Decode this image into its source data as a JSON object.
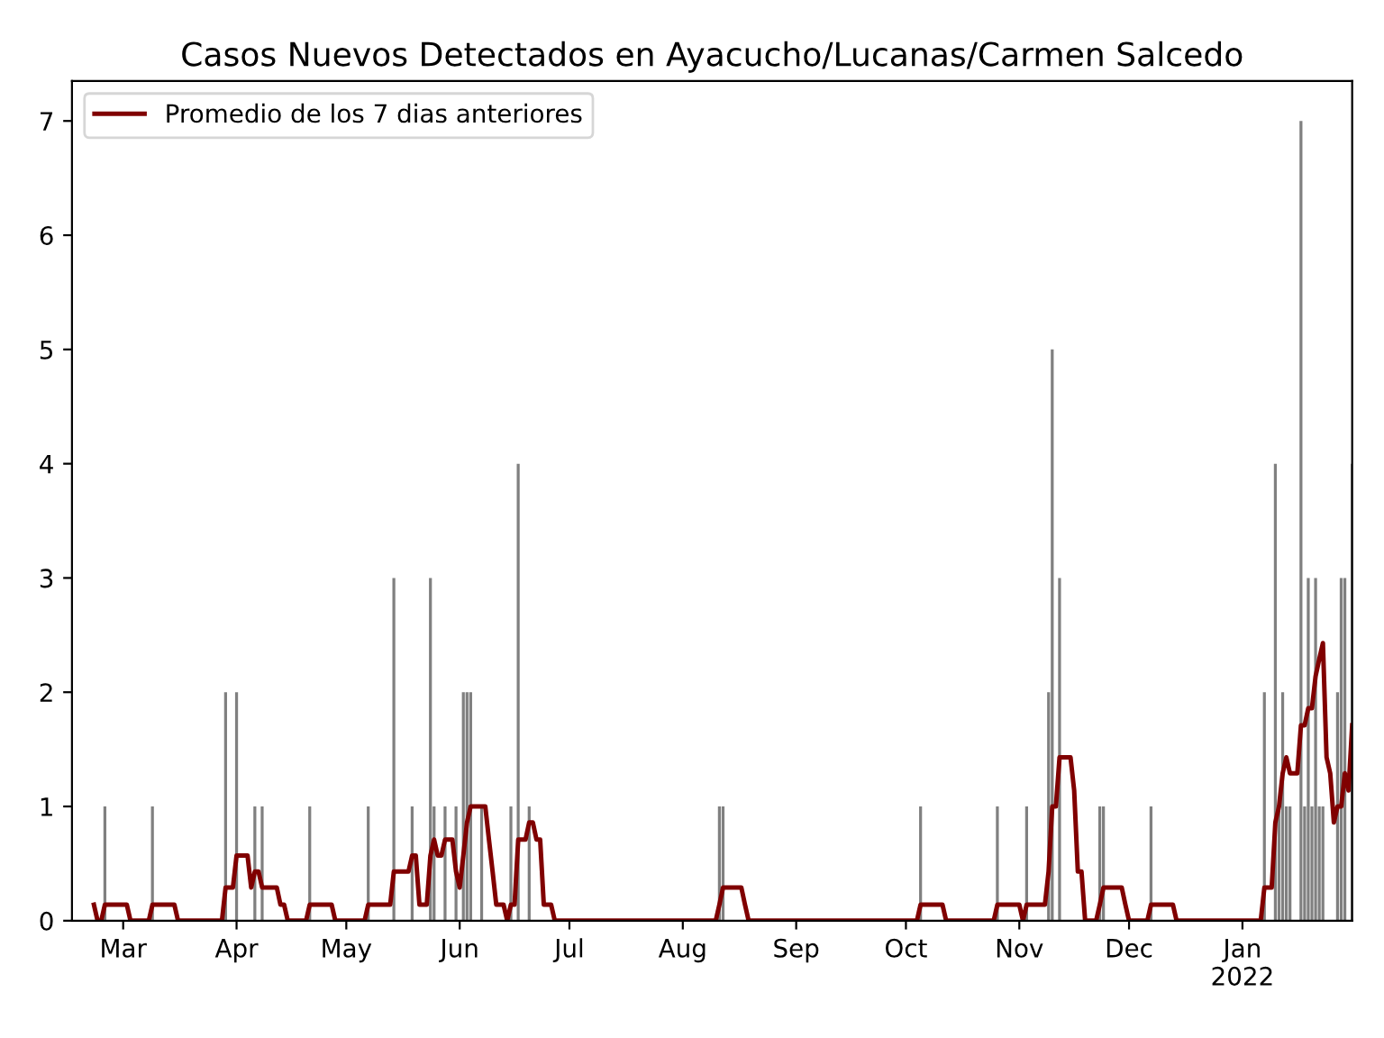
{
  "chart_data": {
    "type": "bar",
    "title": "Casos Nuevos Detectados en Ayacucho/Lucanas/Carmen Salcedo",
    "series": [
      {
        "color": "#808080",
        "x": [
          "2021-02-24",
          "2021-03-09",
          "2021-03-29",
          "2021-04-01",
          "2021-04-06",
          "2021-04-08",
          "2021-04-21",
          "2021-05-07",
          "2021-05-14",
          "2021-05-19",
          "2021-05-24",
          "2021-05-25",
          "2021-05-28",
          "2021-05-31",
          "2021-06-02",
          "2021-06-03",
          "2021-06-04",
          "2021-06-07",
          "2021-06-15",
          "2021-06-17",
          "2021-06-20",
          "2021-08-11",
          "2021-08-12",
          "2021-10-05",
          "2021-10-26",
          "2021-11-03",
          "2021-11-09",
          "2021-11-10",
          "2021-11-12",
          "2021-11-23",
          "2021-11-24",
          "2021-12-07",
          "2022-01-07",
          "2022-01-10",
          "2022-01-11",
          "2022-01-12",
          "2022-01-13",
          "2022-01-14",
          "2022-01-17",
          "2022-01-18",
          "2022-01-19",
          "2022-01-20",
          "2022-01-21",
          "2022-01-22",
          "2022-01-23",
          "2022-01-27",
          "2022-01-28",
          "2022-01-29",
          "2022-01-31"
        ],
        "values": [
          1,
          1,
          2,
          2,
          1,
          1,
          1,
          1,
          3,
          1,
          3,
          1,
          1,
          1,
          2,
          2,
          2,
          1,
          1,
          4,
          1,
          1,
          1,
          1,
          1,
          1,
          2,
          5,
          3,
          1,
          1,
          1,
          2,
          4,
          1,
          2,
          1,
          1,
          7,
          1,
          3,
          1,
          3,
          1,
          1,
          2,
          3,
          3,
          4
        ]
      },
      {
        "type": "line",
        "name": "Promedio de los 7 dias anteriores",
        "color": "#800000",
        "x": [
          "2021-02-21",
          "2021-02-22",
          "2021-02-23",
          "2021-02-24",
          "2021-03-02",
          "2021-03-03",
          "2021-03-08",
          "2021-03-09",
          "2021-03-15",
          "2021-03-16",
          "2021-03-28",
          "2021-03-29",
          "2021-03-31",
          "2021-04-01",
          "2021-04-04",
          "2021-04-05",
          "2021-04-06",
          "2021-04-07",
          "2021-04-08",
          "2021-04-12",
          "2021-04-13",
          "2021-04-14",
          "2021-04-15",
          "2021-04-20",
          "2021-04-21",
          "2021-04-27",
          "2021-04-28",
          "2021-05-06",
          "2021-05-07",
          "2021-05-13",
          "2021-05-14",
          "2021-05-18",
          "2021-05-19",
          "2021-05-20",
          "2021-05-21",
          "2021-05-23",
          "2021-05-24",
          "2021-05-25",
          "2021-05-26",
          "2021-05-27",
          "2021-05-28",
          "2021-05-30",
          "2021-05-31",
          "2021-06-01",
          "2021-06-02",
          "2021-06-03",
          "2021-06-04",
          "2021-06-08",
          "2021-06-09",
          "2021-06-10",
          "2021-06-11",
          "2021-06-13",
          "2021-06-14",
          "2021-06-15",
          "2021-06-16",
          "2021-06-17",
          "2021-06-19",
          "2021-06-20",
          "2021-06-21",
          "2021-06-22",
          "2021-06-23",
          "2021-06-24",
          "2021-06-26",
          "2021-06-27",
          "2021-08-10",
          "2021-08-11",
          "2021-08-12",
          "2021-08-17",
          "2021-08-18",
          "2021-08-19",
          "2021-10-04",
          "2021-10-05",
          "2021-10-11",
          "2021-10-12",
          "2021-10-25",
          "2021-10-26",
          "2021-11-01",
          "2021-11-02",
          "2021-11-03",
          "2021-11-08",
          "2021-11-09",
          "2021-11-10",
          "2021-11-11",
          "2021-11-12",
          "2021-11-15",
          "2021-11-16",
          "2021-11-17",
          "2021-11-18",
          "2021-11-19",
          "2021-11-22",
          "2021-11-23",
          "2021-11-24",
          "2021-11-29",
          "2021-11-30",
          "2021-12-01",
          "2021-12-06",
          "2021-12-07",
          "2021-12-13",
          "2021-12-14",
          "2022-01-06",
          "2022-01-07",
          "2022-01-09",
          "2022-01-10",
          "2022-01-11",
          "2022-01-12",
          "2022-01-13",
          "2022-01-14",
          "2022-01-16",
          "2022-01-17",
          "2022-01-18",
          "2022-01-19",
          "2022-01-20",
          "2022-01-21",
          "2022-01-22",
          "2022-01-23",
          "2022-01-24",
          "2022-01-25",
          "2022-01-26",
          "2022-01-27",
          "2022-01-28",
          "2022-01-29",
          "2022-01-30",
          "2022-01-31"
        ],
        "values": [
          0.14,
          0,
          0,
          0.14,
          0.14,
          0,
          0,
          0.14,
          0.14,
          0,
          0,
          0.29,
          0.29,
          0.57,
          0.57,
          0.29,
          0.43,
          0.43,
          0.29,
          0.29,
          0.14,
          0.14,
          0,
          0,
          0.14,
          0.14,
          0,
          0,
          0.14,
          0.14,
          0.43,
          0.43,
          0.57,
          0.57,
          0.14,
          0.14,
          0.57,
          0.71,
          0.57,
          0.57,
          0.71,
          0.71,
          0.43,
          0.29,
          0.57,
          0.86,
          1.0,
          1.0,
          0.71,
          0.43,
          0.14,
          0.14,
          0,
          0.14,
          0.14,
          0.71,
          0.71,
          0.86,
          0.86,
          0.71,
          0.71,
          0.14,
          0.14,
          0,
          0,
          0.14,
          0.29,
          0.29,
          0.14,
          0,
          0,
          0.14,
          0.14,
          0,
          0,
          0.14,
          0.14,
          0,
          0.14,
          0.14,
          0.43,
          1.0,
          1.0,
          1.43,
          1.43,
          1.14,
          0.43,
          0.43,
          0,
          0,
          0.14,
          0.29,
          0.29,
          0.14,
          0,
          0,
          0.14,
          0.14,
          0,
          0,
          0.29,
          0.29,
          0.86,
          1.0,
          1.29,
          1.43,
          1.29,
          1.29,
          1.71,
          1.71,
          1.86,
          1.86,
          2.14,
          2.29,
          2.43,
          1.43,
          1.29,
          0.86,
          1.0,
          1.0,
          1.29,
          1.14,
          1.71
        ]
      }
    ],
    "xlim": [
      "2021-02-15",
      "2022-01-31"
    ],
    "xticks": [
      {
        "value": "2021-03-01",
        "label": "Mar"
      },
      {
        "value": "2021-04-01",
        "label": "Apr"
      },
      {
        "value": "2021-05-01",
        "label": "May"
      },
      {
        "value": "2021-06-01",
        "label": "Jun"
      },
      {
        "value": "2021-07-01",
        "label": "Jul"
      },
      {
        "value": "2021-08-01",
        "label": "Aug"
      },
      {
        "value": "2021-09-01",
        "label": "Sep"
      },
      {
        "value": "2021-10-01",
        "label": "Oct"
      },
      {
        "value": "2021-11-01",
        "label": "Nov"
      },
      {
        "value": "2021-12-01",
        "label": "Dec"
      },
      {
        "value": "2022-01-01",
        "label": "Jan\n2022"
      }
    ],
    "ylim": [
      0,
      7.35
    ],
    "yticks": [
      0,
      1,
      2,
      3,
      4,
      5,
      6,
      7
    ],
    "legend": "top left",
    "grid": false
  }
}
